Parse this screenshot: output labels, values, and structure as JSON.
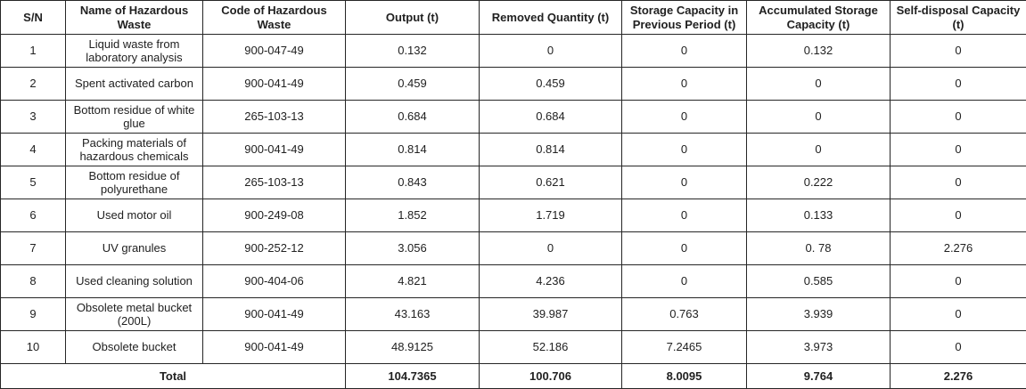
{
  "table": {
    "columns": [
      "S/N",
      "Name of Hazardous Waste",
      "Code of Hazardous Waste",
      "Output (t)",
      "Removed Quantity (t)",
      "Storage Capacity in Previous Period (t)",
      "Accumulated Storage Capacity (t)",
      "Self-disposal Capacity (t)"
    ],
    "rows": [
      {
        "sn": "1",
        "name": "Liquid waste from laboratory analysis",
        "code": "900-047-49",
        "output": "0.132",
        "removed": "0",
        "storage_prev": "0",
        "accumulated": "0.132",
        "self_disposal": "0"
      },
      {
        "sn": "2",
        "name": "Spent activated carbon",
        "code": "900-041-49",
        "output": "0.459",
        "removed": "0.459",
        "storage_prev": "0",
        "accumulated": "0",
        "self_disposal": "0"
      },
      {
        "sn": "3",
        "name": "Bottom residue of white glue",
        "code": "265-103-13",
        "output": "0.684",
        "removed": "0.684",
        "storage_prev": "0",
        "accumulated": "0",
        "self_disposal": "0"
      },
      {
        "sn": "4",
        "name": "Packing materials of hazardous chemicals",
        "code": "900-041-49",
        "output": "0.814",
        "removed": "0.814",
        "storage_prev": "0",
        "accumulated": "0",
        "self_disposal": "0"
      },
      {
        "sn": "5",
        "name": "Bottom residue of polyurethane",
        "code": "265-103-13",
        "output": "0.843",
        "removed": "0.621",
        "storage_prev": "0",
        "accumulated": "0.222",
        "self_disposal": "0"
      },
      {
        "sn": "6",
        "name": "Used motor oil",
        "code": "900-249-08",
        "output": "1.852",
        "removed": "1.719",
        "storage_prev": "0",
        "accumulated": "0.133",
        "self_disposal": "0"
      },
      {
        "sn": "7",
        "name": "UV granules",
        "code": "900-252-12",
        "output": "3.056",
        "removed": "0",
        "storage_prev": "0",
        "accumulated": "0. 78",
        "self_disposal": "2.276"
      },
      {
        "sn": "8",
        "name": "Used cleaning solution",
        "code": "900-404-06",
        "output": "4.821",
        "removed": "4.236",
        "storage_prev": "0",
        "accumulated": "0.585",
        "self_disposal": "0"
      },
      {
        "sn": "9",
        "name": "Obsolete metal bucket (200L)",
        "code": "900-041-49",
        "output": "43.163",
        "removed": "39.987",
        "storage_prev": "0.763",
        "accumulated": "3.939",
        "self_disposal": "0"
      },
      {
        "sn": "10",
        "name": "Obsolete bucket",
        "code": "900-041-49",
        "output": "48.9125",
        "removed": "52.186",
        "storage_prev": "7.2465",
        "accumulated": "3.973",
        "self_disposal": "0"
      }
    ],
    "total": {
      "label": "Total",
      "output": "104.7365",
      "removed": "100.706",
      "storage_prev": "8.0095",
      "accumulated": "9.764",
      "self_disposal": "2.276"
    }
  },
  "colors": {
    "border": "#262626",
    "text": "#212121",
    "background": "#ffffff"
  }
}
